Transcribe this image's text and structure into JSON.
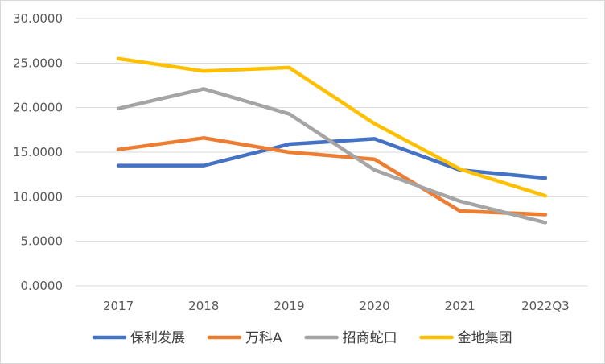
{
  "chart_data": {
    "type": "line",
    "title": "",
    "xlabel": "",
    "ylabel": "",
    "categories": [
      "2017",
      "2018",
      "2019",
      "2020",
      "2021",
      "2022Q3"
    ],
    "ylim": [
      0,
      30
    ],
    "yticks": [
      "0.0000",
      "5.0000",
      "10.0000",
      "15.0000",
      "20.0000",
      "25.0000",
      "30.0000"
    ],
    "grid": true,
    "legend_position": "bottom",
    "series": [
      {
        "name": "保利发展",
        "color": "#4472c4",
        "values": [
          13.5,
          13.5,
          15.9,
          16.5,
          13.0,
          12.1
        ]
      },
      {
        "name": "万科A",
        "color": "#ed7d31",
        "values": [
          15.3,
          16.6,
          15.0,
          14.2,
          8.4,
          8.0
        ]
      },
      {
        "name": "招商蛇口",
        "color": "#a5a5a5",
        "values": [
          19.9,
          22.1,
          19.3,
          13.0,
          9.5,
          7.1
        ]
      },
      {
        "name": "金地集团",
        "color": "#ffc000",
        "values": [
          25.5,
          24.1,
          24.5,
          18.2,
          13.1,
          10.1
        ]
      }
    ]
  }
}
